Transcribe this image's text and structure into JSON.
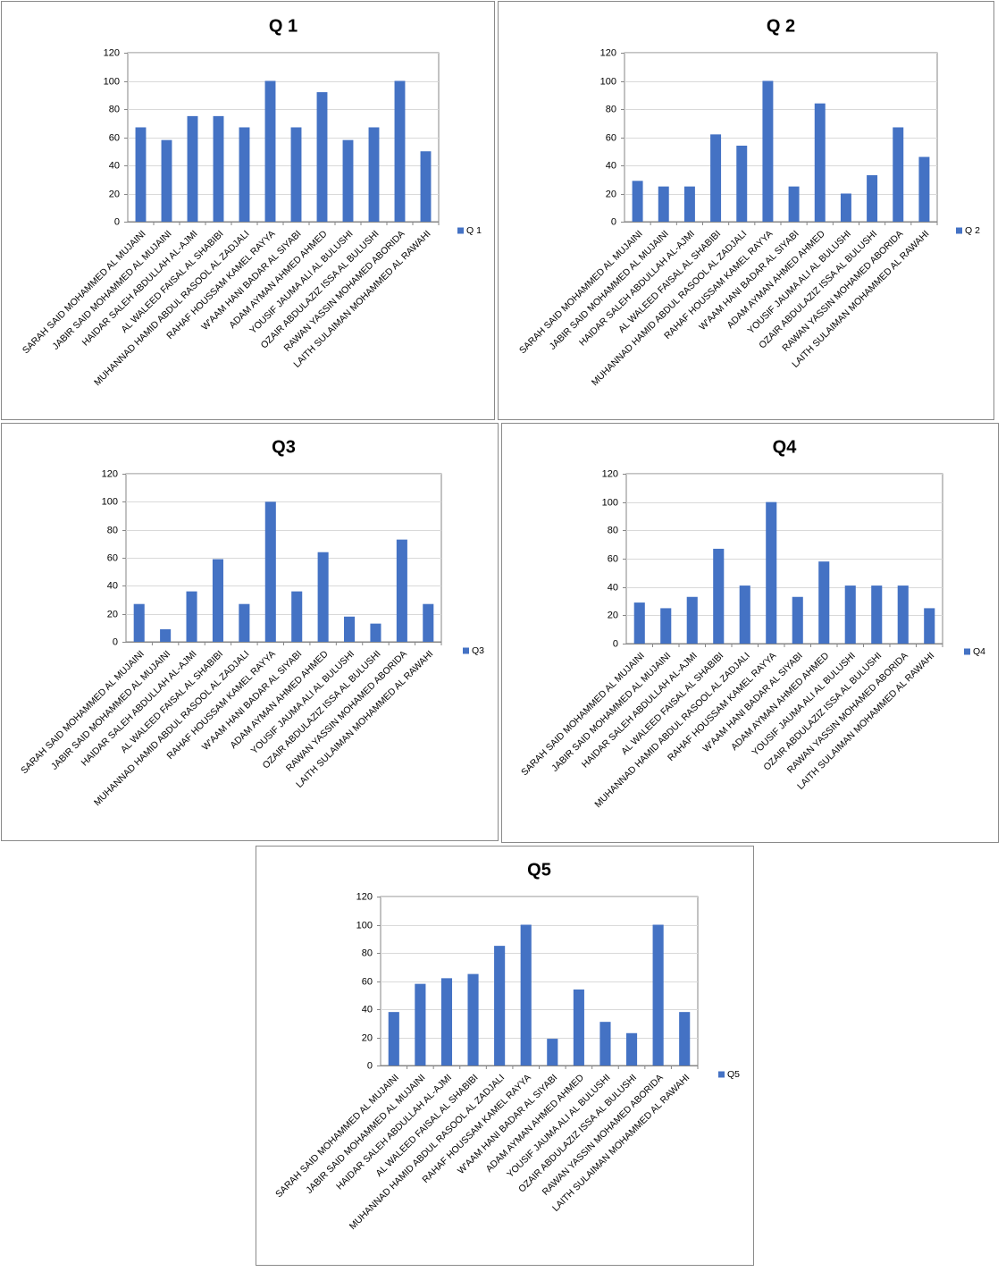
{
  "colors": {
    "bar": "#4472C4",
    "grid": "#d9d9d9",
    "axis": "#868686",
    "text": "#000000"
  },
  "chart_data": [
    {
      "type": "bar",
      "title": "Q 1",
      "legend": "Q 1",
      "legend_position": "right",
      "ylim": [
        0,
        120
      ],
      "yticks": [
        0,
        20,
        40,
        60,
        80,
        100,
        120
      ],
      "grid": true,
      "categories": [
        "SARAH SAID MOHAMMED AL MUJAINI",
        "JABIR SAID MOHAMMED AL MUJAINI",
        "HAIDAR SALEH ABDULLAH AL-AJMI",
        "AL WALEED FAISAL AL SHABIBI",
        "MUHANNAD HAMID ABDUL RASOOL AL ZADJALI",
        "RAHAF HOUSSAM KAMEL RAYYA",
        "W'AAM HANI BADAR AL SIYABI",
        "ADAM AYMAN AHMED AHMED",
        "YOUSIF JAUMA ALI AL BULUSHI",
        "OZAIR ABDULAZIZ ISSA AL BULUSHI",
        "RAWAN YASSIN MOHAMED ABORIDA",
        "LAITH SULAIMAN MOHAMMED AL RAWAHI"
      ],
      "values": [
        67,
        58,
        75,
        75,
        67,
        100,
        67,
        92,
        58,
        67,
        100,
        50
      ]
    },
    {
      "type": "bar",
      "title": "Q 2",
      "legend": "Q 2",
      "legend_position": "right",
      "ylim": [
        0,
        120
      ],
      "yticks": [
        0,
        20,
        40,
        60,
        80,
        100,
        120
      ],
      "grid": true,
      "categories": [
        "SARAH SAID MOHAMMED AL MUJAINI",
        "JABIR SAID MOHAMMED AL MUJAINI",
        "HAIDAR SALEH ABDULLAH AL-AJMI",
        "AL WALEED FAISAL AL SHABIBI",
        "MUHANNAD HAMID ABDUL RASOOL AL ZADJALI",
        "RAHAF HOUSSAM KAMEL RAYYA",
        "W'AAM HANI BADAR AL SIYABI",
        "ADAM AYMAN AHMED AHMED",
        "YOUSIF JAUMA ALI AL BULUSHI",
        "OZAIR ABDULAZIZ ISSA AL BULUSHI",
        "RAWAN YASSIN MOHAMED ABORIDA",
        "LAITH SULAIMAN MOHAMMED AL RAWAHI"
      ],
      "values": [
        29,
        25,
        25,
        62,
        54,
        100,
        25,
        84,
        20,
        33,
        67,
        46
      ]
    },
    {
      "type": "bar",
      "title": "Q3",
      "legend": "Q3",
      "legend_position": "right",
      "ylim": [
        0,
        120
      ],
      "yticks": [
        0,
        20,
        40,
        60,
        80,
        100,
        120
      ],
      "grid": true,
      "categories": [
        "SARAH SAID MOHAMMED AL MUJAINI",
        "JABIR SAID MOHAMMED AL MUJAINI",
        "HAIDAR SALEH ABDULLAH AL-AJMI",
        "AL WALEED FAISAL AL SHABIBI",
        "MUHANNAD HAMID ABDUL RASOOL AL ZADJALI",
        "RAHAF HOUSSAM KAMEL RAYYA",
        "W'AAM HANI BADAR AL SIYABI",
        "ADAM AYMAN AHMED AHMED",
        "YOUSIF JAUMA ALI AL BULUSHI",
        "OZAIR ABDULAZIZ ISSA AL BULUSHI",
        "RAWAN YASSIN MOHAMED ABORIDA",
        "LAITH SULAIMAN MOHAMMED AL RAWAHI"
      ],
      "values": [
        27,
        9,
        36,
        59,
        27,
        100,
        36,
        64,
        18,
        13,
        73,
        27
      ]
    },
    {
      "type": "bar",
      "title": "Q4",
      "legend": "Q4",
      "legend_position": "right",
      "ylim": [
        0,
        120
      ],
      "yticks": [
        0,
        20,
        40,
        60,
        80,
        100,
        120
      ],
      "grid": true,
      "categories": [
        "SARAH SAID MOHAMMED AL MUJAINI",
        "JABIR SAID MOHAMMED AL MUJAINI",
        "HAIDAR SALEH ABDULLAH AL-AJMI",
        "AL WALEED FAISAL AL SHABIBI",
        "MUHANNAD HAMID ABDUL RASOOL AL ZADJALI",
        "RAHAF HOUSSAM KAMEL RAYYA",
        "W'AAM HANI BADAR AL SIYABI",
        "ADAM AYMAN AHMED AHMED",
        "YOUSIF JAUMA ALI AL BULUSHI",
        "OZAIR ABDULAZIZ ISSA AL BULUSHI",
        "RAWAN YASSIN MOHAMED ABORIDA",
        "LAITH SULAIMAN MOHAMMED AL RAWAHI"
      ],
      "values": [
        29,
        25,
        33,
        67,
        41,
        100,
        33,
        58,
        41,
        41,
        41,
        25
      ]
    },
    {
      "type": "bar",
      "title": "Q5",
      "legend": "Q5",
      "legend_position": "right",
      "ylim": [
        0,
        120
      ],
      "yticks": [
        0,
        20,
        40,
        60,
        80,
        100,
        120
      ],
      "grid": true,
      "categories": [
        "SARAH SAID MOHAMMED AL MUJAINI",
        "JABIR SAID MOHAMMED AL MUJAINI",
        "HAIDAR SALEH ABDULLAH AL-AJMI",
        "AL WALEED FAISAL AL SHABIBI",
        "MUHANNAD HAMID ABDUL RASOOL AL ZADJALI",
        "RAHAF HOUSSAM KAMEL RAYYA",
        "W'AAM HANI BADAR AL SIYABI",
        "ADAM AYMAN AHMED AHMED",
        "YOUSIF JAUMA ALI AL BULUSHI",
        "OZAIR ABDULAZIZ ISSA AL BULUSHI",
        "RAWAN YASSIN MOHAMED ABORIDA",
        "LAITH SULAIMAN MOHAMMED AL RAWAHI"
      ],
      "values": [
        38,
        58,
        62,
        65,
        85,
        100,
        19,
        54,
        31,
        23,
        100,
        38
      ]
    }
  ]
}
